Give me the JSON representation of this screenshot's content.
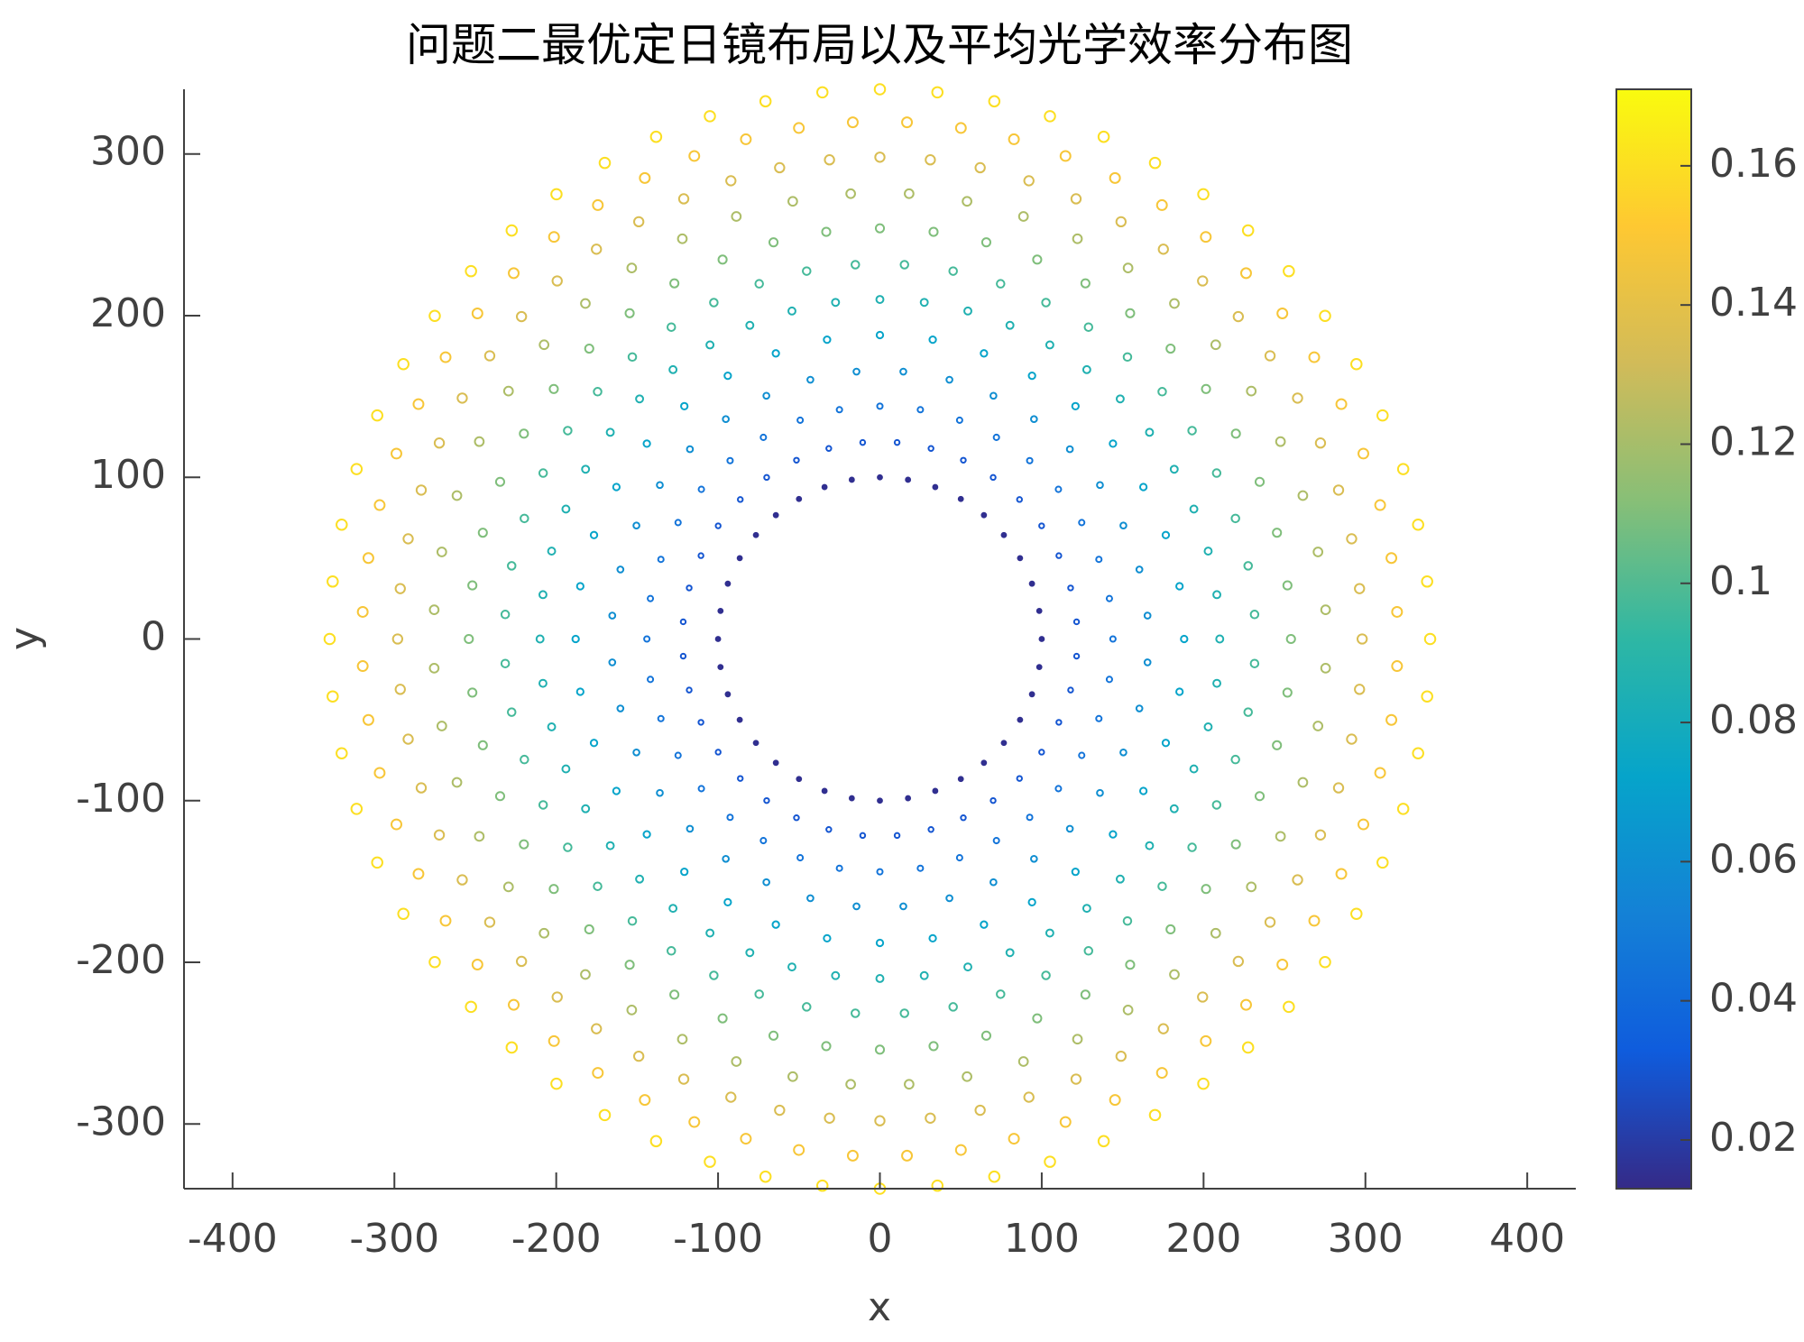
{
  "chart_data": {
    "type": "scatter",
    "coords": "polar",
    "title": "问题二最优定日镜布局以及平均光学效率分布图",
    "xlabel": "x",
    "ylabel": "y",
    "xlim": [
      -430,
      430
    ],
    "xticks": [
      -400,
      -300,
      -200,
      -100,
      0,
      100,
      200,
      300,
      400
    ],
    "ylim": [
      -340,
      340
    ],
    "yticks": [
      -300,
      -200,
      -100,
      0,
      100,
      200,
      300
    ],
    "clim": [
      0.013,
      0.171
    ],
    "cticks": [
      0.02,
      0.04,
      0.06,
      0.08,
      0.1,
      0.12,
      0.14,
      0.16
    ],
    "colormap": [
      "#352a87",
      "#0f5cdd",
      "#1481d6",
      "#06a4ca",
      "#2eb7a4",
      "#87bf77",
      "#d1bb59",
      "#fec832",
      "#f9fb0e"
    ],
    "series": [
      {
        "r": 100,
        "value": 0.015,
        "theta": [
          0,
          10,
          20,
          30,
          40,
          50,
          60,
          70,
          80,
          90,
          100,
          110,
          120,
          130,
          140,
          150,
          160,
          170,
          180,
          190,
          200,
          210,
          220,
          230,
          240,
          250,
          260,
          270,
          280,
          290,
          300,
          310,
          320,
          330,
          340,
          350
        ]
      },
      {
        "r": 122,
        "value": 0.03,
        "theta": [
          5,
          15,
          25,
          35,
          45,
          55,
          65,
          75,
          85,
          95,
          105,
          115,
          125,
          135,
          145,
          155,
          165,
          175,
          185,
          195,
          205,
          215,
          225,
          235,
          245,
          255,
          265,
          275,
          285,
          295,
          305,
          315,
          325,
          335,
          345,
          355
        ]
      },
      {
        "r": 144,
        "value": 0.045,
        "theta": [
          0,
          10,
          20,
          30,
          40,
          50,
          60,
          70,
          80,
          90,
          100,
          110,
          120,
          130,
          140,
          150,
          160,
          170,
          180,
          190,
          200,
          210,
          220,
          230,
          240,
          250,
          260,
          270,
          280,
          290,
          300,
          310,
          320,
          330,
          340,
          350
        ]
      },
      {
        "r": 166,
        "value": 0.06,
        "theta": [
          5,
          15,
          25,
          35,
          45,
          55,
          65,
          75,
          85,
          95,
          105,
          115,
          125,
          135,
          145,
          155,
          165,
          175,
          185,
          195,
          205,
          215,
          225,
          235,
          245,
          255,
          265,
          275,
          285,
          295,
          305,
          315,
          325,
          335,
          345,
          355
        ]
      },
      {
        "r": 188,
        "value": 0.072,
        "theta": [
          0,
          10,
          20,
          30,
          40,
          50,
          60,
          70,
          80,
          90,
          100,
          110,
          120,
          130,
          140,
          150,
          160,
          170,
          180,
          190,
          200,
          210,
          220,
          230,
          240,
          250,
          260,
          270,
          280,
          290,
          300,
          310,
          320,
          330,
          340,
          350
        ]
      },
      {
        "r": 210,
        "value": 0.085,
        "theta": [
          0,
          7.5,
          15,
          22.5,
          30,
          37.5,
          45,
          52.5,
          60,
          67.5,
          75,
          82.5,
          90,
          97.5,
          105,
          112.5,
          120,
          127.5,
          135,
          142.5,
          150,
          157.5,
          165,
          172.5,
          180,
          187.5,
          195,
          202.5,
          210,
          217.5,
          225,
          232.5,
          240,
          247.5,
          255,
          262.5,
          270,
          277.5,
          285,
          292.5,
          300,
          307.5,
          315,
          322.5,
          330,
          337.5,
          345,
          352.5
        ]
      },
      {
        "r": 232,
        "value": 0.097,
        "theta": [
          3.75,
          11.25,
          18.75,
          26.25,
          33.75,
          41.25,
          48.75,
          56.25,
          63.75,
          71.25,
          78.75,
          86.25,
          93.75,
          101.25,
          108.75,
          116.25,
          123.75,
          131.25,
          138.75,
          146.25,
          153.75,
          161.25,
          168.75,
          176.25,
          183.75,
          191.25,
          198.75,
          206.25,
          213.75,
          221.25,
          228.75,
          236.25,
          243.75,
          251.25,
          258.75,
          266.25,
          273.75,
          281.25,
          288.75,
          296.25,
          303.75,
          311.25,
          318.75,
          326.25,
          333.75,
          341.25,
          348.75,
          356.25
        ]
      },
      {
        "r": 254,
        "value": 0.11,
        "theta": [
          0,
          7.5,
          15,
          22.5,
          30,
          37.5,
          45,
          52.5,
          60,
          67.5,
          75,
          82.5,
          90,
          97.5,
          105,
          112.5,
          120,
          127.5,
          135,
          142.5,
          150,
          157.5,
          165,
          172.5,
          180,
          187.5,
          195,
          202.5,
          210,
          217.5,
          225,
          232.5,
          240,
          247.5,
          255,
          262.5,
          270,
          277.5,
          285,
          292.5,
          300,
          307.5,
          315,
          322.5,
          330,
          337.5,
          345,
          352.5
        ]
      },
      {
        "r": 276,
        "value": 0.122,
        "theta": [
          3.75,
          11.25,
          18.75,
          26.25,
          33.75,
          41.25,
          48.75,
          56.25,
          63.75,
          71.25,
          78.75,
          86.25,
          93.75,
          101.25,
          108.75,
          116.25,
          123.75,
          131.25,
          138.75,
          146.25,
          153.75,
          161.25,
          168.75,
          176.25,
          183.75,
          191.25,
          198.75,
          206.25,
          213.75,
          221.25,
          228.75,
          236.25,
          243.75,
          251.25,
          258.75,
          266.25,
          273.75,
          281.25,
          288.75,
          296.25,
          303.75,
          311.25,
          318.75,
          326.25,
          333.75,
          341.25,
          348.75,
          356.25
        ]
      },
      {
        "r": 298,
        "value": 0.135,
        "theta": [
          0,
          6,
          12,
          18,
          24,
          30,
          36,
          42,
          48,
          54,
          60,
          66,
          72,
          78,
          84,
          90,
          96,
          102,
          108,
          114,
          120,
          126,
          132,
          138,
          144,
          150,
          156,
          162,
          168,
          174,
          180,
          186,
          192,
          198,
          204,
          210,
          216,
          222,
          228,
          234,
          240,
          246,
          252,
          258,
          264,
          270,
          276,
          282,
          288,
          294,
          300,
          306,
          312,
          318,
          324,
          330,
          336,
          342,
          348,
          354
        ]
      },
      {
        "r": 320,
        "value": 0.148,
        "theta": [
          3,
          9,
          15,
          21,
          27,
          33,
          39,
          45,
          51,
          57,
          63,
          69,
          75,
          81,
          87,
          93,
          99,
          105,
          111,
          117,
          123,
          129,
          135,
          141,
          147,
          153,
          159,
          165,
          171,
          177,
          183,
          189,
          195,
          201,
          207,
          213,
          219,
          225,
          231,
          237,
          243,
          249,
          255,
          261,
          267,
          273,
          279,
          285,
          291,
          297,
          303,
          309,
          315,
          321,
          327,
          333,
          339,
          345,
          351,
          357
        ]
      },
      {
        "r": 340,
        "value": 0.16,
        "theta": [
          0,
          6,
          12,
          18,
          24,
          30,
          36,
          42,
          48,
          54,
          60,
          66,
          72,
          78,
          84,
          90,
          96,
          102,
          108,
          114,
          120,
          126,
          132,
          138,
          144,
          150,
          156,
          162,
          168,
          174,
          180,
          186,
          192,
          198,
          204,
          210,
          216,
          222,
          228,
          234,
          240,
          246,
          252,
          258,
          264,
          270,
          276,
          282,
          288,
          294,
          300,
          306,
          312,
          318,
          324,
          330,
          336,
          342,
          348,
          354
        ]
      }
    ]
  }
}
